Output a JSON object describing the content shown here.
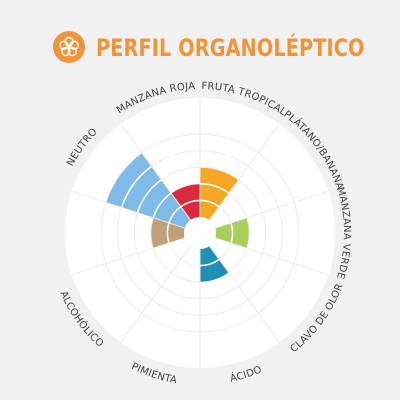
{
  "header": {
    "title": "PERFIL ORGANOLÉPTICO",
    "title_color": "#f0943a",
    "logo_icon": "flower-icon",
    "logo_color": "#f0943a"
  },
  "chart_data": {
    "type": "polar-area",
    "levels": 5,
    "rmax": 5,
    "categories": [
      {
        "label": "FRUTA TROPICAL",
        "value": 3,
        "color": "#f5a623"
      },
      {
        "label": "PLÁTANO/BANANA",
        "value": 0,
        "color": "#f5c84a"
      },
      {
        "label": "MANZANA VERDE",
        "value": 2,
        "color": "#a8cf5a"
      },
      {
        "label": "CLAVO DE OLOR",
        "value": 0,
        "color": "#6b4f33"
      },
      {
        "label": "ÁCIDO",
        "value": 2,
        "color": "#1f8fb6"
      },
      {
        "label": "PIMIENTA",
        "value": 0,
        "color": "#c45b2a"
      },
      {
        "label": "ALCOHÓLICO",
        "value": 0,
        "color": "#8e6bb5"
      },
      {
        "label": "",
        "value": 2,
        "color": "#bfa07a"
      },
      {
        "label": "NEUTRO",
        "value": 5,
        "color": "#7fbbe8"
      },
      {
        "label": "MANZANA ROJA",
        "value": 2,
        "color": "#e0283c"
      }
    ]
  }
}
